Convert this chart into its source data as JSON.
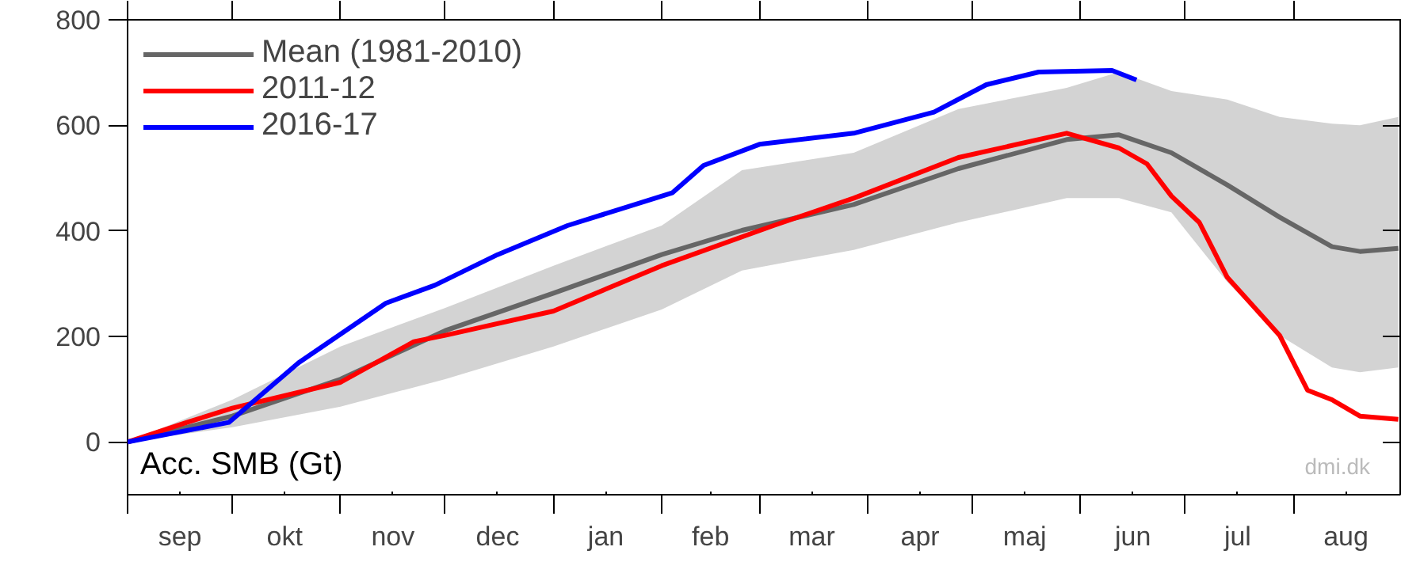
{
  "chart_data": {
    "type": "line",
    "annotations": [
      "Acc. SMB (Gt)",
      "dmi.dk"
    ],
    "xlim": [
      "2016-09-01",
      "2017-09-01"
    ],
    "xticks": [
      {
        "value": "2016-09-01",
        "label": null
      },
      {
        "value": "2016-09-16",
        "label": "sep"
      },
      {
        "value": "2016-10-01",
        "label": null
      },
      {
        "value": "2016-10-16",
        "label": "okt"
      },
      {
        "value": "2016-11-01",
        "label": null
      },
      {
        "value": "2016-11-16",
        "label": "nov"
      },
      {
        "value": "2016-12-01",
        "label": null
      },
      {
        "value": "2016-12-16",
        "label": "dec"
      },
      {
        "value": "2017-01-01",
        "label": null
      },
      {
        "value": "2017-01-16",
        "label": "jan"
      },
      {
        "value": "2017-02-01",
        "label": null
      },
      {
        "value": "2017-02-15",
        "label": "feb"
      },
      {
        "value": "2017-03-01",
        "label": null
      },
      {
        "value": "2017-03-16",
        "label": "mar"
      },
      {
        "value": "2017-04-01",
        "label": null
      },
      {
        "value": "2017-04-16",
        "label": "apr"
      },
      {
        "value": "2017-05-01",
        "label": null
      },
      {
        "value": "2017-05-16",
        "label": "maj"
      },
      {
        "value": "2017-06-01",
        "label": null
      },
      {
        "value": "2017-06-16",
        "label": "jun"
      },
      {
        "value": "2017-07-01",
        "label": null
      },
      {
        "value": "2017-07-16",
        "label": "jul"
      },
      {
        "value": "2017-08-01",
        "label": null
      },
      {
        "value": "2017-08-16",
        "label": "aug"
      }
    ],
    "ylim": [
      -100,
      800
    ],
    "yticks": [
      0,
      200,
      400,
      600,
      800
    ],
    "grid": false,
    "legend": "top left",
    "marker": "none",
    "line_style": "solid",
    "series": [
      {
        "name": "Mean (1981-2010)",
        "color": "#666666",
        "x": [
          "2016-09-01",
          "2016-10-01",
          "2016-11-01",
          "2016-12-01",
          "2017-01-01",
          "2017-02-01",
          "2017-02-24",
          "2017-03-28",
          "2017-04-27",
          "2017-05-28",
          "2017-06-12",
          "2017-06-27",
          "2017-07-13",
          "2017-07-28",
          "2017-08-12",
          "2017-08-20",
          "2017-08-31"
        ],
        "values": [
          0,
          49,
          119,
          211,
          282,
          355,
          401,
          450,
          518,
          573,
          582,
          548,
          487,
          426,
          370,
          361,
          367
        ],
        "lower": [
          0,
          28,
          67,
          119,
          181,
          251,
          325,
          364,
          416,
          462,
          462,
          435,
          303,
          202,
          141,
          132,
          141
        ],
        "upper": [
          0,
          80,
          181,
          254,
          334,
          410,
          515,
          548,
          631,
          671,
          701,
          665,
          649,
          616,
          603,
          600,
          616
        ]
      },
      {
        "name": "2011-12",
        "color": "#ff0000",
        "x": [
          "2016-09-01",
          "2016-09-18",
          "2016-10-01",
          "2016-11-01",
          "2016-11-22",
          "2016-12-01",
          "2017-01-01",
          "2017-02-01",
          "2017-03-05",
          "2017-03-28",
          "2017-04-27",
          "2017-05-28",
          "2017-06-12",
          "2017-06-20",
          "2017-06-27",
          "2017-07-05",
          "2017-07-13",
          "2017-07-28",
          "2017-08-05",
          "2017-08-12",
          "2017-08-20",
          "2017-08-31"
        ],
        "values": [
          0,
          37,
          64,
          113,
          190,
          202,
          248,
          334,
          410,
          462,
          539,
          585,
          557,
          527,
          466,
          416,
          312,
          202,
          98,
          80,
          49,
          43
        ]
      },
      {
        "name": "2016-17",
        "color": "#0000ff",
        "x": [
          "2016-09-01",
          "2016-09-30",
          "2016-10-20",
          "2016-11-14",
          "2016-11-28",
          "2016-12-16",
          "2017-01-05",
          "2017-02-04",
          "2017-02-13",
          "2017-03-01",
          "2017-03-28",
          "2017-04-20",
          "2017-05-05",
          "2017-05-20",
          "2017-06-10",
          "2017-06-17"
        ],
        "values": [
          0,
          37,
          150,
          263,
          297,
          355,
          410,
          472,
          524,
          564,
          585,
          625,
          677,
          701,
          704,
          686
        ]
      }
    ]
  }
}
